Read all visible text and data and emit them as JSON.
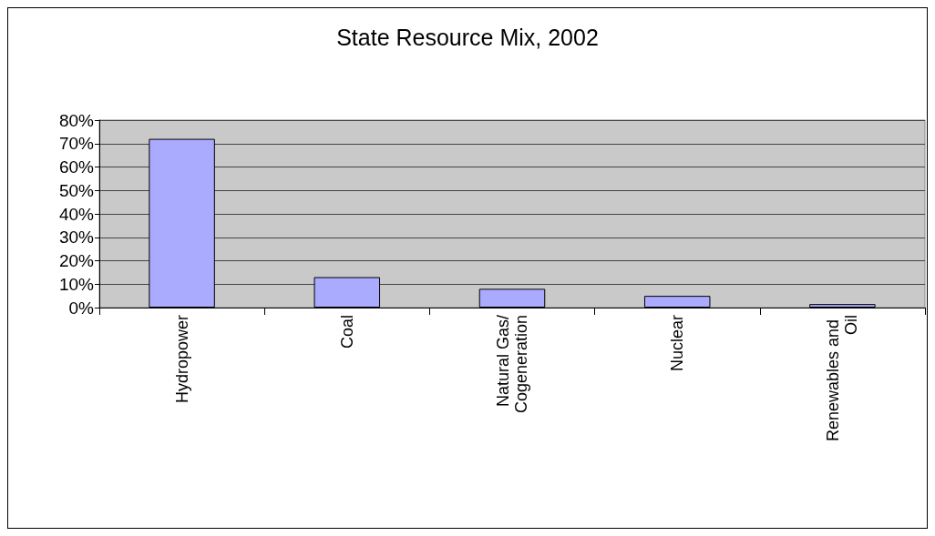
{
  "chart_data": {
    "type": "bar",
    "title": "State Resource Mix, 2002",
    "categories": [
      "Hydropower",
      "Coal",
      "Natural Gas/Cogeneration",
      "Nuclear",
      "Renewables and Oil"
    ],
    "values": [
      72,
      13,
      8,
      5,
      1.5
    ],
    "color": "#aaaaff",
    "ylim": [
      0,
      80
    ],
    "yticks": [
      {
        "value": 0,
        "label": "0%"
      },
      {
        "value": 10,
        "label": "10%"
      },
      {
        "value": 20,
        "label": "20%"
      },
      {
        "value": 30,
        "label": "30%"
      },
      {
        "value": 40,
        "label": "40%"
      },
      {
        "value": 50,
        "label": "50%"
      },
      {
        "value": 60,
        "label": "60%"
      },
      {
        "value": 70,
        "label": "70%"
      },
      {
        "value": 80,
        "label": "80%"
      }
    ],
    "grid": "y"
  }
}
